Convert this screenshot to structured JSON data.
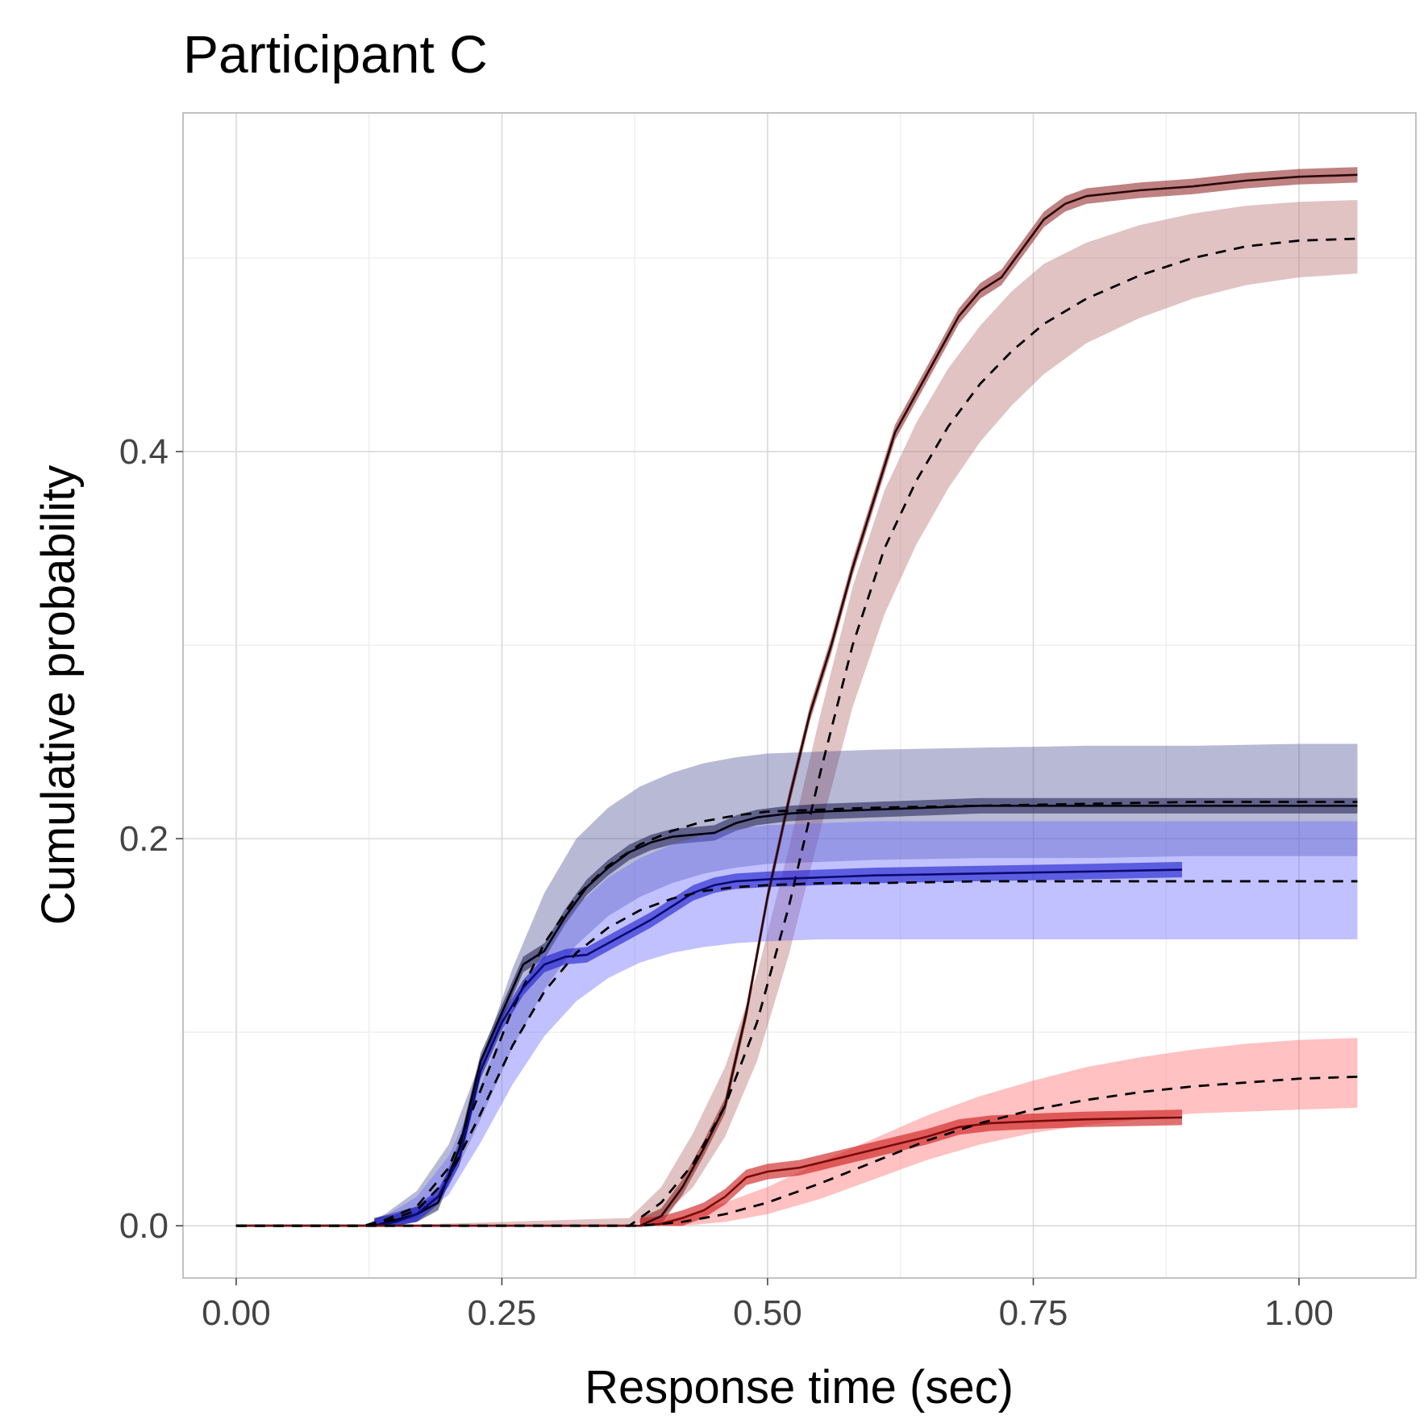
{
  "chart_data": {
    "type": "line",
    "title": "Participant C",
    "xlabel": "Response time (sec)",
    "ylabel": "Cumulative probability",
    "xlim": [
      -0.05,
      1.11
    ],
    "ylim": [
      -0.027,
      0.575
    ],
    "xticks": [
      0.0,
      0.25,
      0.5,
      0.75,
      1.0
    ],
    "xtick_labels": [
      "0.00",
      "0.25",
      "0.50",
      "0.75",
      "1.00"
    ],
    "yticks": [
      0.0,
      0.2,
      0.4
    ],
    "ytick_labels": [
      "0.0",
      "0.2",
      "0.4"
    ],
    "grid": true,
    "series": [
      {
        "color": "#8b1a1a",
        "band_color": "#b77070",
        "band_opacity": 0.42,
        "obs_band_opacity": 0.55,
        "predicted": {
          "x": [
            0.0,
            0.13,
            0.37,
            0.4,
            0.43,
            0.46,
            0.49,
            0.52,
            0.55,
            0.58,
            0.61,
            0.64,
            0.67,
            0.7,
            0.73,
            0.76,
            0.8,
            0.85,
            0.9,
            0.95,
            1.0,
            1.055
          ],
          "y": [
            0.0,
            0.0,
            0.0,
            0.012,
            0.032,
            0.062,
            0.105,
            0.165,
            0.235,
            0.3,
            0.35,
            0.385,
            0.413,
            0.435,
            0.452,
            0.466,
            0.479,
            0.491,
            0.5,
            0.506,
            0.509,
            0.51
          ],
          "lower": [
            0.0,
            0.0,
            0.0,
            0.004,
            0.02,
            0.046,
            0.085,
            0.14,
            0.205,
            0.268,
            0.316,
            0.352,
            0.381,
            0.405,
            0.424,
            0.44,
            0.456,
            0.469,
            0.479,
            0.486,
            0.49,
            0.492
          ],
          "upper": [
            0.0,
            0.0,
            0.004,
            0.02,
            0.048,
            0.082,
            0.13,
            0.195,
            0.265,
            0.33,
            0.38,
            0.415,
            0.443,
            0.465,
            0.483,
            0.497,
            0.508,
            0.517,
            0.523,
            0.527,
            0.529,
            0.53
          ]
        },
        "observed": {
          "x": [
            0.0,
            0.38,
            0.4,
            0.42,
            0.44,
            0.46,
            0.48,
            0.5,
            0.52,
            0.54,
            0.56,
            0.58,
            0.6,
            0.62,
            0.64,
            0.66,
            0.68,
            0.7,
            0.72,
            0.74,
            0.76,
            0.78,
            0.8,
            0.85,
            0.9,
            0.95,
            1.0,
            1.055
          ],
          "y": [
            0.0,
            0.0,
            0.005,
            0.02,
            0.04,
            0.062,
            0.11,
            0.17,
            0.22,
            0.265,
            0.3,
            0.34,
            0.375,
            0.41,
            0.43,
            0.45,
            0.47,
            0.483,
            0.49,
            0.505,
            0.52,
            0.528,
            0.532,
            0.535,
            0.537,
            0.54,
            0.542,
            0.543
          ],
          "band": 0.004
        }
      },
      {
        "color": "#1a1a4e",
        "band_color": "#3a3f8a",
        "band_opacity": 0.36,
        "obs_band_opacity": 0.55,
        "predicted": {
          "x": [
            0.0,
            0.12,
            0.14,
            0.17,
            0.2,
            0.23,
            0.26,
            0.29,
            0.32,
            0.35,
            0.38,
            0.41,
            0.44,
            0.47,
            0.5,
            0.55,
            0.6,
            0.7,
            0.8,
            0.9,
            1.0,
            1.055
          ],
          "y": [
            0.0,
            0.0,
            0.003,
            0.01,
            0.03,
            0.07,
            0.112,
            0.146,
            0.17,
            0.186,
            0.197,
            0.204,
            0.209,
            0.212,
            0.214,
            0.215,
            0.216,
            0.217,
            0.218,
            0.219,
            0.219,
            0.219
          ],
          "lower": [
            0.0,
            0.0,
            0.0,
            0.004,
            0.02,
            0.055,
            0.092,
            0.122,
            0.145,
            0.16,
            0.17,
            0.177,
            0.182,
            0.185,
            0.187,
            0.188,
            0.189,
            0.19,
            0.19,
            0.191,
            0.191,
            0.191
          ],
          "upper": [
            0.0,
            0.0,
            0.006,
            0.018,
            0.042,
            0.085,
            0.133,
            0.172,
            0.2,
            0.216,
            0.227,
            0.234,
            0.239,
            0.242,
            0.244,
            0.245,
            0.246,
            0.247,
            0.248,
            0.248,
            0.249,
            0.249
          ]
        },
        "observed": {
          "x": [
            0.0,
            0.13,
            0.15,
            0.17,
            0.19,
            0.21,
            0.23,
            0.25,
            0.27,
            0.29,
            0.31,
            0.33,
            0.35,
            0.37,
            0.39,
            0.41,
            0.43,
            0.45,
            0.47,
            0.49,
            0.52,
            0.55,
            0.6,
            0.7,
            0.8,
            0.9,
            1.0,
            1.055
          ],
          "y": [
            0.0,
            0.0,
            0.003,
            0.006,
            0.012,
            0.04,
            0.085,
            0.11,
            0.135,
            0.142,
            0.16,
            0.175,
            0.185,
            0.193,
            0.198,
            0.201,
            0.202,
            0.203,
            0.208,
            0.211,
            0.213,
            0.214,
            0.215,
            0.217,
            0.217,
            0.217,
            0.217,
            0.217
          ],
          "band": 0.004
        }
      },
      {
        "color": "#1a1acd",
        "band_color": "#6b6bff",
        "band_opacity": 0.42,
        "obs_band_opacity": 0.6,
        "predicted": {
          "x": [
            0.0,
            0.12,
            0.14,
            0.17,
            0.2,
            0.23,
            0.26,
            0.29,
            0.32,
            0.35,
            0.38,
            0.41,
            0.44,
            0.47,
            0.5,
            0.55,
            0.6,
            0.7,
            0.8,
            0.9,
            1.0,
            1.055
          ],
          "y": [
            0.0,
            0.0,
            0.002,
            0.008,
            0.025,
            0.058,
            0.093,
            0.121,
            0.141,
            0.154,
            0.163,
            0.169,
            0.173,
            0.175,
            0.176,
            0.177,
            0.177,
            0.178,
            0.178,
            0.178,
            0.178,
            0.178
          ],
          "lower": [
            0.0,
            0.0,
            0.0,
            0.003,
            0.016,
            0.043,
            0.073,
            0.098,
            0.116,
            0.128,
            0.136,
            0.141,
            0.144,
            0.146,
            0.147,
            0.148,
            0.148,
            0.148,
            0.148,
            0.148,
            0.148,
            0.148
          ],
          "upper": [
            0.0,
            0.0,
            0.005,
            0.015,
            0.036,
            0.073,
            0.112,
            0.143,
            0.165,
            0.18,
            0.19,
            0.197,
            0.202,
            0.205,
            0.207,
            0.208,
            0.209,
            0.209,
            0.209,
            0.209,
            0.209,
            0.209
          ]
        },
        "observed": {
          "x": [
            0.0,
            0.13,
            0.15,
            0.17,
            0.19,
            0.21,
            0.23,
            0.25,
            0.27,
            0.29,
            0.31,
            0.33,
            0.35,
            0.37,
            0.39,
            0.41,
            0.43,
            0.45,
            0.47,
            0.5,
            0.55,
            0.6,
            0.7,
            0.8,
            0.89
          ],
          "y": [
            0.0,
            0.0,
            0.002,
            0.006,
            0.015,
            0.035,
            0.08,
            0.105,
            0.123,
            0.135,
            0.139,
            0.14,
            0.146,
            0.152,
            0.158,
            0.165,
            0.172,
            0.176,
            0.178,
            0.179,
            0.18,
            0.181,
            0.182,
            0.183,
            0.184
          ],
          "band": 0.004
        }
      },
      {
        "color": "#cd1a1a",
        "band_color": "#ff6b6b",
        "band_opacity": 0.42,
        "obs_band_opacity": 0.62,
        "predicted": {
          "x": [
            0.0,
            0.38,
            0.42,
            0.46,
            0.5,
            0.55,
            0.6,
            0.65,
            0.7,
            0.75,
            0.8,
            0.85,
            0.9,
            0.95,
            1.0,
            1.055
          ],
          "y": [
            0.0,
            0.0,
            0.002,
            0.006,
            0.012,
            0.022,
            0.033,
            0.044,
            0.053,
            0.06,
            0.065,
            0.069,
            0.072,
            0.074,
            0.076,
            0.077
          ],
          "lower": [
            0.0,
            0.0,
            0.0,
            0.002,
            0.006,
            0.014,
            0.024,
            0.034,
            0.042,
            0.048,
            0.052,
            0.055,
            0.058,
            0.059,
            0.06,
            0.061
          ],
          "upper": [
            0.0,
            0.0,
            0.005,
            0.012,
            0.02,
            0.033,
            0.045,
            0.057,
            0.067,
            0.075,
            0.082,
            0.087,
            0.091,
            0.094,
            0.096,
            0.097
          ]
        },
        "observed": {
          "x": [
            0.0,
            0.38,
            0.4,
            0.42,
            0.44,
            0.46,
            0.48,
            0.5,
            0.53,
            0.56,
            0.59,
            0.62,
            0.65,
            0.68,
            0.71,
            0.75,
            0.8,
            0.89
          ],
          "y": [
            0.0,
            0.0,
            0.001,
            0.004,
            0.008,
            0.015,
            0.025,
            0.028,
            0.03,
            0.034,
            0.038,
            0.042,
            0.046,
            0.051,
            0.053,
            0.054,
            0.055,
            0.056
          ],
          "band": 0.004
        }
      }
    ]
  }
}
